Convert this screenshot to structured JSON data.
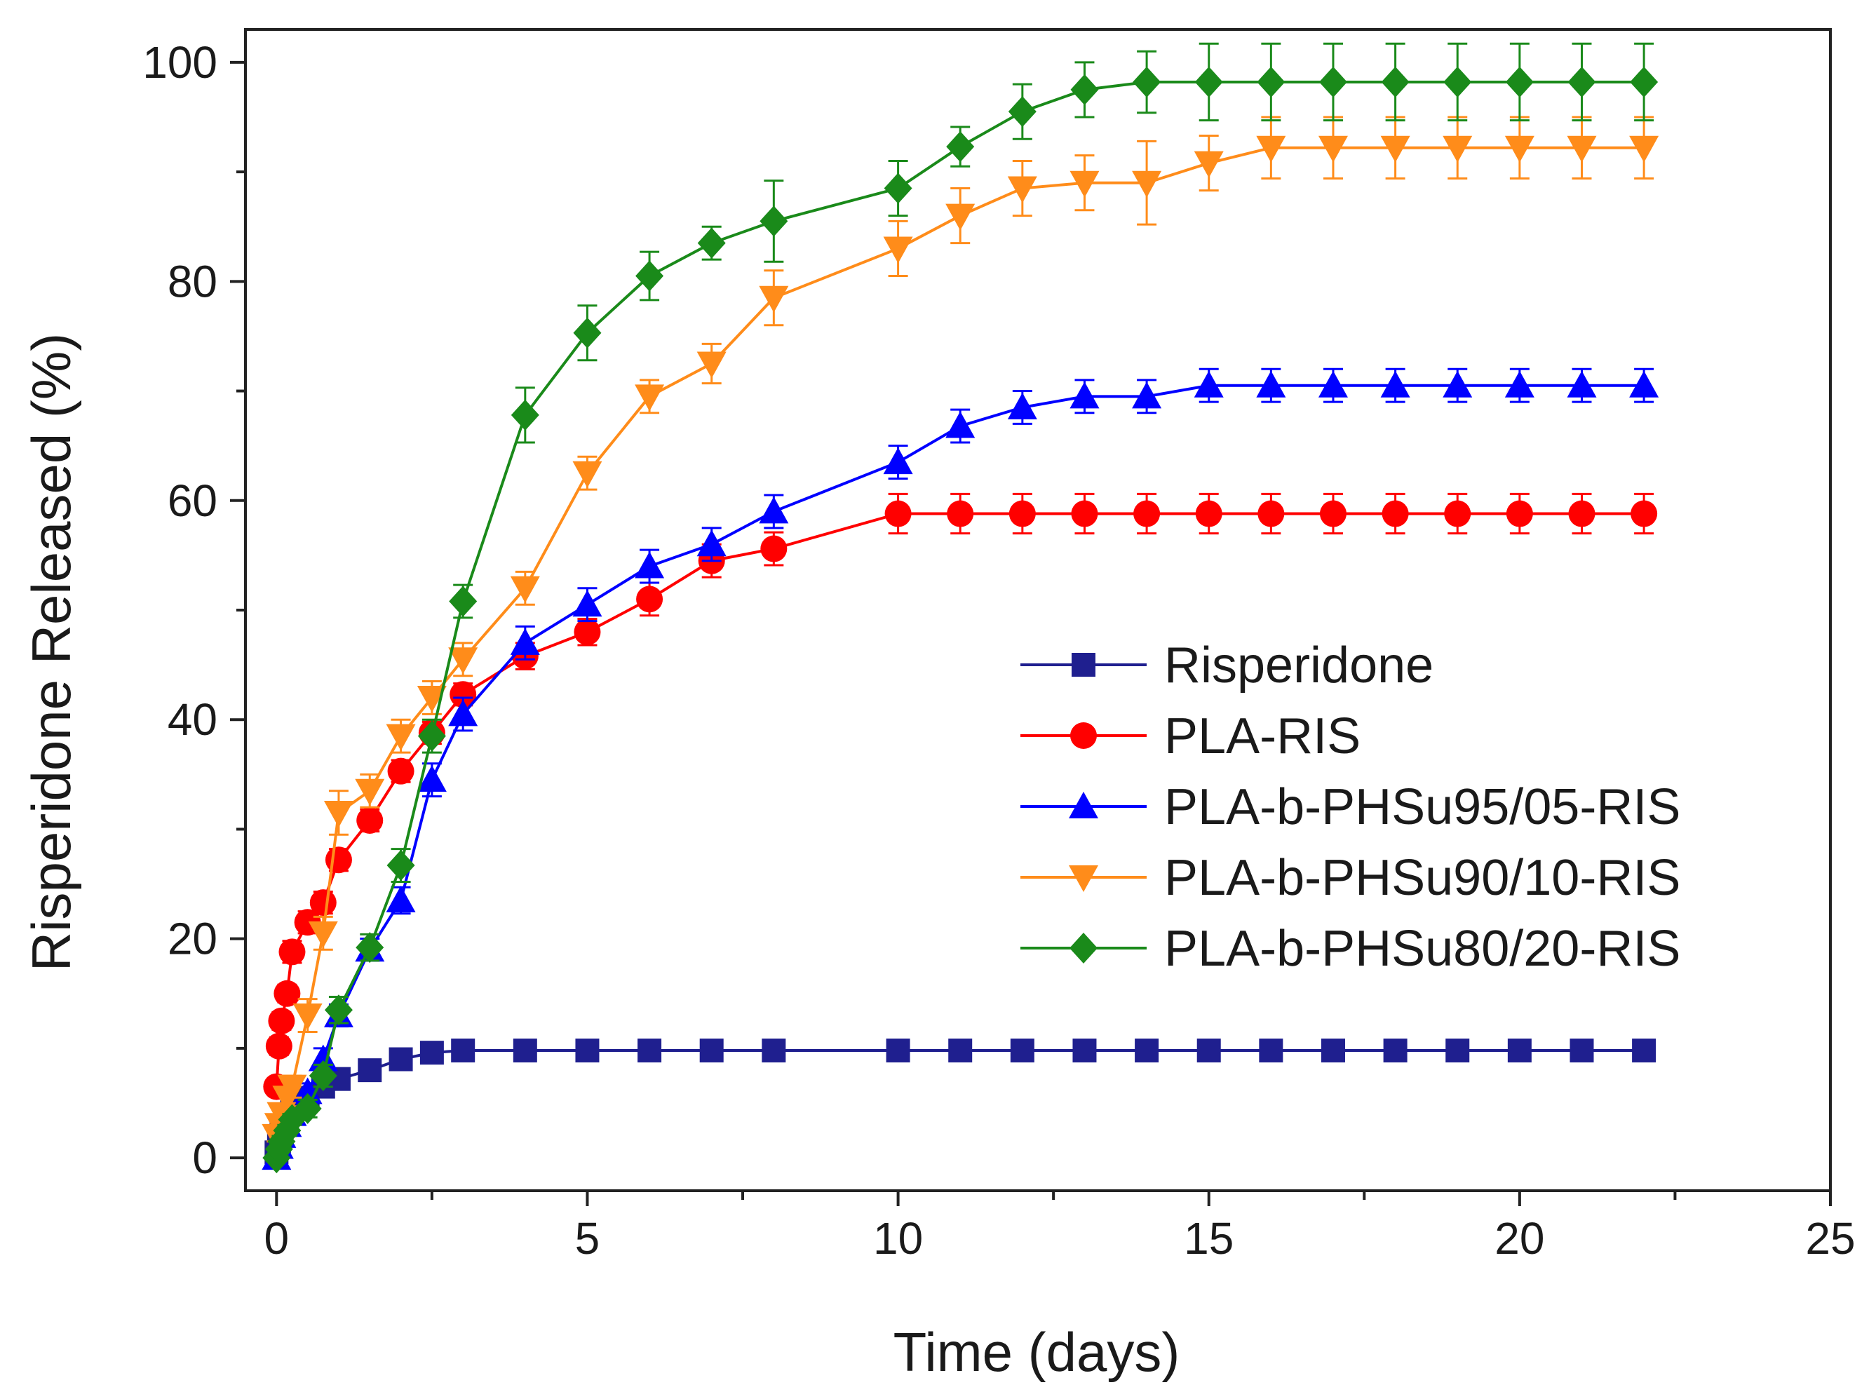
{
  "chart_data": {
    "type": "line",
    "title": "",
    "xlabel": "Time (days)",
    "ylabel": "Risperidone Released (%)",
    "xlim": [
      -0.5,
      25
    ],
    "ylim": [
      -3,
      103
    ],
    "xticks": [
      0,
      5,
      10,
      15,
      20,
      25
    ],
    "yticks": [
      0,
      20,
      40,
      60,
      80,
      100
    ],
    "grid": false,
    "legend_position": "center-right",
    "error_bars": true,
    "series": [
      {
        "name": "Risperidone",
        "color": "#1f1f8f",
        "marker": "square",
        "x": [
          0,
          0.04,
          0.08,
          0.17,
          0.25,
          0.5,
          0.75,
          1,
          1.5,
          2,
          2.5,
          3,
          4,
          5,
          6,
          7,
          8,
          10,
          11,
          12,
          13,
          14,
          15,
          16,
          17,
          18,
          19,
          20,
          21,
          22
        ],
        "y": [
          0.5,
          1.5,
          2.5,
          3.5,
          4.5,
          5.5,
          6.5,
          7.2,
          8,
          9,
          9.6,
          9.8,
          9.8,
          9.8,
          9.8,
          9.8,
          9.8,
          9.8,
          9.8,
          9.8,
          9.8,
          9.8,
          9.8,
          9.8,
          9.8,
          9.8,
          9.8,
          9.8,
          9.8,
          9.8
        ],
        "err": [
          0.2,
          0.2,
          0.3,
          0.3,
          0.3,
          0.3,
          0.3,
          0.3,
          0.3,
          0.3,
          0.3,
          0.3,
          0.3,
          0.3,
          0.3,
          0.3,
          0.3,
          0.3,
          0.3,
          0.3,
          0.3,
          0.3,
          0.3,
          0.3,
          0.3,
          0.3,
          0.3,
          0.3,
          0.3,
          0.3
        ]
      },
      {
        "name": "PLA-RIS",
        "color": "#ff0000",
        "marker": "circle",
        "x": [
          0,
          0.04,
          0.08,
          0.17,
          0.25,
          0.5,
          0.75,
          1,
          1.5,
          2,
          2.5,
          3,
          4,
          5,
          6,
          7,
          8,
          10,
          11,
          12,
          13,
          14,
          15,
          16,
          17,
          18,
          19,
          20,
          21,
          22
        ],
        "y": [
          6.5,
          10.2,
          12.5,
          15,
          18.8,
          21.5,
          23.3,
          27.2,
          30.8,
          35.3,
          38.8,
          42.3,
          45.8,
          48,
          51,
          54.5,
          55.6,
          58.8,
          58.8,
          58.8,
          58.8,
          58.8,
          58.8,
          58.8,
          58.8,
          58.8,
          58.8,
          58.8,
          58.8,
          58.8
        ],
        "err": [
          0.6,
          0.8,
          0.8,
          0.8,
          1,
          1,
          1,
          1,
          1,
          1,
          1,
          1,
          1.2,
          1.2,
          1.5,
          1.5,
          1.5,
          1.8,
          1.8,
          1.8,
          1.8,
          1.8,
          1.8,
          1.8,
          1.8,
          1.8,
          1.8,
          1.8,
          1.8,
          1.8
        ]
      },
      {
        "name": "PLA-b-PHSu95/05-RIS",
        "color": "#0000ff",
        "marker": "triangle-up",
        "x": [
          0,
          0.04,
          0.08,
          0.17,
          0.25,
          0.5,
          0.75,
          1,
          1.5,
          2,
          2.5,
          3,
          4,
          5,
          6,
          7,
          8,
          10,
          11,
          12,
          13,
          14,
          15,
          16,
          17,
          18,
          19,
          20,
          21,
          22
        ],
        "y": [
          0,
          1,
          2,
          3,
          4,
          6,
          9,
          13,
          19,
          23.5,
          34.5,
          40.5,
          47,
          50.5,
          54,
          56,
          59,
          63.5,
          66.8,
          68.5,
          69.5,
          69.5,
          70.5,
          70.5,
          70.5,
          70.5,
          70.5,
          70.5,
          70.5,
          70.5
        ],
        "err": [
          0.3,
          0.5,
          0.5,
          0.5,
          0.5,
          0.8,
          1,
          1,
          1,
          1.2,
          1.5,
          1.5,
          1.5,
          1.5,
          1.5,
          1.5,
          1.5,
          1.5,
          1.5,
          1.5,
          1.5,
          1.5,
          1.5,
          1.5,
          1.5,
          1.5,
          1.5,
          1.5,
          1.5,
          1.5
        ]
      },
      {
        "name": "PLA-b-PHSu90/10-RIS",
        "color": "#ff8c1a",
        "marker": "triangle-down",
        "x": [
          0,
          0.04,
          0.08,
          0.17,
          0.25,
          0.5,
          0.75,
          1,
          1.5,
          2,
          2.5,
          3,
          4,
          5,
          6,
          7,
          8,
          10,
          11,
          12,
          13,
          14,
          15,
          16,
          17,
          18,
          19,
          20,
          21,
          22
        ],
        "y": [
          2,
          3,
          4,
          5.5,
          6.5,
          13,
          20.5,
          31.5,
          33.5,
          38.5,
          42,
          45.5,
          52,
          62.5,
          69.5,
          72.5,
          78.5,
          83,
          86,
          88.5,
          89,
          89,
          90.8,
          92.2,
          92.2,
          92.2,
          92.2,
          92.2,
          92.2,
          92.2
        ],
        "err": [
          0.5,
          0.5,
          0.5,
          0.8,
          1,
          1.5,
          1.5,
          2,
          1.5,
          1.5,
          1.5,
          1.5,
          1.5,
          1.5,
          1.5,
          1.8,
          2.5,
          2.5,
          2.5,
          2.5,
          2.5,
          3.8,
          2.5,
          2.8,
          2.8,
          2.8,
          2.8,
          2.8,
          2.8,
          2.8
        ]
      },
      {
        "name": "PLA-b-PHSu80/20-RIS",
        "color": "#1a8a1a",
        "marker": "diamond",
        "x": [
          0,
          0.04,
          0.08,
          0.17,
          0.25,
          0.5,
          0.75,
          1,
          1.5,
          2,
          2.5,
          3,
          4,
          5,
          6,
          7,
          8,
          10,
          11,
          12,
          13,
          14,
          15,
          16,
          17,
          18,
          19,
          20,
          21,
          22
        ],
        "y": [
          0,
          0.8,
          1.5,
          2.5,
          3.5,
          4.5,
          7.5,
          13.5,
          19.2,
          26.7,
          38.5,
          50.8,
          67.8,
          75.3,
          80.5,
          83.5,
          85.5,
          88.5,
          92.3,
          95.5,
          97.5,
          98.2,
          98.2,
          98.2,
          98.2,
          98.2,
          98.2,
          98.2,
          98.2,
          98.2
        ],
        "err": [
          0.3,
          0.4,
          0.5,
          0.5,
          0.5,
          0.8,
          1,
          1.2,
          1.2,
          1.5,
          1.5,
          1.5,
          2.5,
          2.5,
          2.2,
          1.5,
          3.7,
          2.5,
          1.8,
          2.5,
          2.5,
          2.8,
          3.5,
          3.5,
          3.5,
          3.5,
          3.5,
          3.5,
          3.5,
          3.5
        ]
      }
    ]
  }
}
